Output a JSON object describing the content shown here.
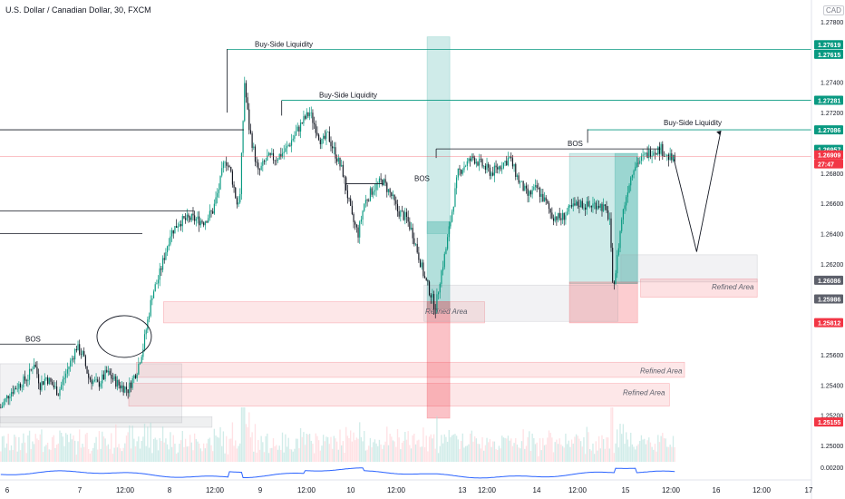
{
  "header": {
    "title": "U.S. Dollar / Canadian Dollar, 30, FXCM",
    "currency": "CAD"
  },
  "chart_data": {
    "type": "candlestick",
    "ylim": [
      1.2495,
      1.2785
    ],
    "price_axis_ticks": [
      "1.27800",
      "1.27400",
      "1.27200",
      "1.26800",
      "1.26600",
      "1.26400",
      "1.26200",
      "1.25600",
      "1.25400",
      "1.25200",
      "1.25000"
    ],
    "price_axis_tick_values": [
      1.278,
      1.274,
      1.272,
      1.268,
      1.266,
      1.264,
      1.262,
      1.256,
      1.254,
      1.252,
      1.25
    ],
    "price_labels": [
      {
        "text": "1.27619",
        "value": 1.27619,
        "color": "#089981"
      },
      {
        "text": "1.27615",
        "value": 1.27615,
        "color": "#089981"
      },
      {
        "text": "1.27281",
        "value": 1.27281,
        "color": "#089981"
      },
      {
        "text": "1.27086",
        "value": 1.27086,
        "color": "#089981"
      },
      {
        "text": "1.26957",
        "value": 1.26957,
        "color": "#089981"
      },
      {
        "text": "1.26909",
        "value": 1.26909,
        "color": "#f23645"
      },
      {
        "text": "27:47",
        "value": 1.2684,
        "color": "#f23645"
      },
      {
        "text": "1.26086",
        "value": 1.26086,
        "color": "#5d606b"
      },
      {
        "text": "1.25986",
        "value": 1.25986,
        "color": "#5d606b"
      },
      {
        "text": "1.25812",
        "value": 1.25812,
        "color": "#f23645"
      },
      {
        "text": "1.25155",
        "value": 1.25155,
        "color": "#f23645"
      }
    ],
    "indicator_tick": "0.00200",
    "time_axis_ticks": [
      "6",
      "7",
      "12:00",
      "8",
      "12:00",
      "9",
      "12:00",
      "10",
      "12:00",
      "13",
      "12:00",
      "14",
      "12:00",
      "15",
      "12:00",
      "16",
      "12:00",
      "17"
    ],
    "annotations": {
      "bos": [
        "BOS",
        "BOS",
        "BOS"
      ],
      "buy_side_liquidity": [
        "Buy-Side Liquidity",
        "Buy-Side Liquidity",
        "Buy-Side Liquidity"
      ],
      "refined_area": [
        "Refined Area",
        "Refined Area",
        "Refined Area",
        "Refined Area"
      ]
    },
    "colors": {
      "up": "#089981",
      "down": "#131722",
      "bull_zone": "#26a69a",
      "bear_zone": "#f23645",
      "liquidity_line": "#089981",
      "current_price_line": "#f23645",
      "volume_up": "#b2dfdb",
      "volume_down": "#ffcdd2",
      "indicator_line": "#2962ff"
    },
    "path_keypoints": [
      [
        0,
        1.2525
      ],
      [
        6,
        1.2535
      ],
      [
        12,
        1.254
      ],
      [
        18,
        1.2545
      ],
      [
        22,
        1.2555
      ],
      [
        26,
        1.254
      ],
      [
        30,
        1.2545
      ],
      [
        38,
        1.2535
      ],
      [
        44,
        1.255
      ],
      [
        50,
        1.2565
      ],
      [
        54,
        1.256
      ],
      [
        58,
        1.2545
      ],
      [
        64,
        1.254
      ],
      [
        70,
        1.2548
      ],
      [
        78,
        1.254
      ],
      [
        84,
        1.2537
      ],
      [
        90,
        1.255
      ],
      [
        94,
        1.2565
      ],
      [
        100,
        1.26
      ],
      [
        104,
        1.261
      ],
      [
        108,
        1.2625
      ],
      [
        112,
        1.264
      ],
      [
        118,
        1.2648
      ],
      [
        126,
        1.265
      ],
      [
        134,
        1.2648
      ],
      [
        140,
        1.2655
      ],
      [
        144,
        1.267
      ],
      [
        148,
        1.269
      ],
      [
        152,
        1.268
      ],
      [
        156,
        1.266
      ],
      [
        158,
        1.2665
      ],
      [
        161,
        1.274
      ],
      [
        164,
        1.271
      ],
      [
        170,
        1.268
      ],
      [
        176,
        1.269
      ],
      [
        182,
        1.269
      ],
      [
        188,
        1.2695
      ],
      [
        194,
        1.2705
      ],
      [
        200,
        1.2715
      ],
      [
        204,
        1.272
      ],
      [
        208,
        1.271
      ],
      [
        212,
        1.27
      ],
      [
        216,
        1.2705
      ],
      [
        222,
        1.269
      ],
      [
        226,
        1.268
      ],
      [
        232,
        1.265
      ],
      [
        236,
        1.264
      ],
      [
        240,
        1.266
      ],
      [
        246,
        1.267
      ],
      [
        252,
        1.2675
      ],
      [
        258,
        1.2665
      ],
      [
        262,
        1.2655
      ],
      [
        268,
        1.265
      ],
      [
        272,
        1.264
      ],
      [
        276,
        1.2625
      ],
      [
        280,
        1.261
      ],
      [
        284,
        1.26
      ],
      [
        287,
        1.259
      ],
      [
        290,
        1.261
      ],
      [
        294,
        1.263
      ],
      [
        298,
        1.2655
      ],
      [
        302,
        1.268
      ],
      [
        306,
        1.2685
      ],
      [
        312,
        1.269
      ],
      [
        318,
        1.2685
      ],
      [
        324,
        1.268
      ],
      [
        330,
        1.2685
      ],
      [
        336,
        1.269
      ],
      [
        342,
        1.2675
      ],
      [
        348,
        1.2665
      ],
      [
        354,
        1.267
      ],
      [
        360,
        1.266
      ],
      [
        364,
        1.2652
      ],
      [
        370,
        1.265
      ],
      [
        376,
        1.2656
      ],
      [
        382,
        1.266
      ],
      [
        388,
        1.2658
      ],
      [
        394,
        1.266
      ],
      [
        398,
        1.2657
      ],
      [
        402,
        1.265
      ],
      [
        404,
        1.2605
      ],
      [
        406,
        1.2615
      ],
      [
        410,
        1.265
      ],
      [
        414,
        1.267
      ],
      [
        418,
        1.2685
      ],
      [
        424,
        1.269
      ],
      [
        430,
        1.2695
      ],
      [
        436,
        1.2696
      ],
      [
        440,
        1.2691
      ],
      [
        445,
        1.2688
      ]
    ],
    "projection": [
      [
        445,
        1.2689
      ],
      [
        460,
        1.2628
      ],
      [
        476,
        1.2708
      ]
    ]
  }
}
